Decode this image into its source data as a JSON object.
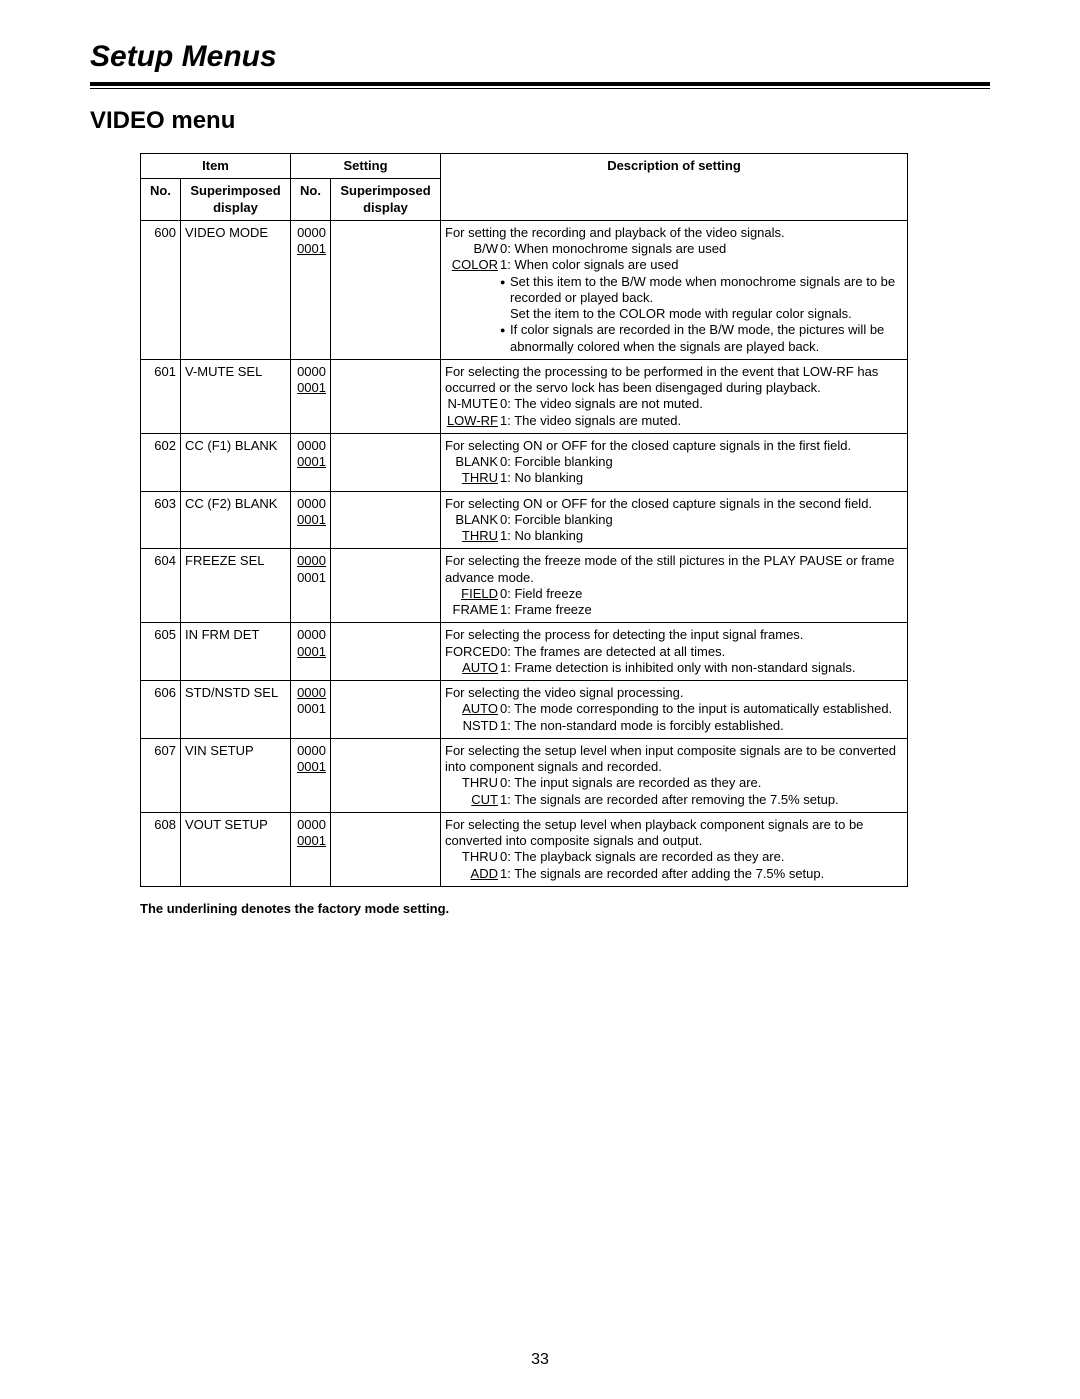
{
  "chapter_title": "Setup Menus",
  "section_title": "VIDEO menu",
  "footnote": "The underlining denotes the factory mode setting.",
  "page_number": "33",
  "headers": {
    "item": "Item",
    "setting": "Setting",
    "no": "No.",
    "superimposed": "Superimposed display",
    "description": "Description of setting"
  },
  "rows": [
    {
      "no": "600",
      "item": "VIDEO MODE",
      "settings": [
        {
          "no": "0000",
          "disp": "B/W",
          "text": "0: When monochrome signals are used",
          "default": false
        },
        {
          "no": "0001",
          "disp": "COLOR",
          "text": "1: When color signals are used",
          "default": true
        }
      ],
      "intro": "For setting the recording and playback of the video signals.",
      "notes": [
        "Set this item to the B/W mode when monochrome signals are to be recorded or played back.",
        "Set the item to the COLOR mode with regular color signals.",
        "If color signals are recorded in the B/W mode, the pictures will be abnormally colored when the signals are played back."
      ],
      "note_bullets": [
        true,
        false,
        true
      ]
    },
    {
      "no": "601",
      "item": "V-MUTE SEL",
      "settings": [
        {
          "no": "0000",
          "disp": "N-MUTE",
          "text": "0: The video signals are not muted.",
          "default": false
        },
        {
          "no": "0001",
          "disp": "LOW-RF",
          "text": "1: The video signals are muted.",
          "default": true
        }
      ],
      "intro": "For selecting the processing to be performed in the event that LOW-RF has occurred or the servo lock has been disengaged during playback.",
      "notes": [],
      "note_bullets": []
    },
    {
      "no": "602",
      "item": "CC (F1) BLANK",
      "settings": [
        {
          "no": "0000",
          "disp": "BLANK",
          "text": "0: Forcible blanking",
          "default": false
        },
        {
          "no": "0001",
          "disp": "THRU",
          "text": "1: No blanking",
          "default": true
        }
      ],
      "intro": "For selecting ON or OFF for the closed capture signals in the first field.",
      "notes": [],
      "note_bullets": []
    },
    {
      "no": "603",
      "item": "CC (F2) BLANK",
      "settings": [
        {
          "no": "0000",
          "disp": "BLANK",
          "text": "0: Forcible blanking",
          "default": false
        },
        {
          "no": "0001",
          "disp": "THRU",
          "text": "1: No blanking",
          "default": true
        }
      ],
      "intro": "For selecting ON or OFF for the closed capture signals in the second field.",
      "notes": [],
      "note_bullets": []
    },
    {
      "no": "604",
      "item": "FREEZE SEL",
      "settings": [
        {
          "no": "0000",
          "disp": "FIELD",
          "text": "0: Field freeze",
          "default": true
        },
        {
          "no": "0001",
          "disp": "FRAME",
          "text": "1: Frame freeze",
          "default": false
        }
      ],
      "intro": "For selecting the freeze mode of the still pictures in the PLAY PAUSE or frame advance mode.",
      "notes": [],
      "note_bullets": []
    },
    {
      "no": "605",
      "item": "IN FRM DET",
      "settings": [
        {
          "no": "0000",
          "disp": "FORCED",
          "text": "0: The frames are detected at all times.",
          "default": false
        },
        {
          "no": "0001",
          "disp": "AUTO",
          "text": "1: Frame detection is inhibited only with non-standard signals.",
          "default": true
        }
      ],
      "intro": "For selecting the process for detecting the input signal frames.",
      "notes": [],
      "note_bullets": []
    },
    {
      "no": "606",
      "item": "STD/NSTD SEL",
      "settings": [
        {
          "no": "0000",
          "disp": "AUTO",
          "text": "0: The mode corresponding to the input is automatically established.",
          "default": true
        },
        {
          "no": "0001",
          "disp": "NSTD",
          "text": "1: The non-standard mode is forcibly established.",
          "default": false
        }
      ],
      "intro": "For selecting the video signal processing.",
      "notes": [],
      "note_bullets": []
    },
    {
      "no": "607",
      "item": "VIN SETUP",
      "settings": [
        {
          "no": "0000",
          "disp": "THRU",
          "text": "0: The input signals are recorded as they are.",
          "default": false
        },
        {
          "no": "0001",
          "disp": "CUT",
          "text": "1: The signals are recorded after removing the 7.5% setup.",
          "default": true
        }
      ],
      "intro": "For selecting the setup level when input composite signals are to be converted into component signals and recorded.",
      "notes": [],
      "note_bullets": []
    },
    {
      "no": "608",
      "item": "VOUT SETUP",
      "settings": [
        {
          "no": "0000",
          "disp": "THRU",
          "text": "0: The playback signals are recorded as they are.",
          "default": false
        },
        {
          "no": "0001",
          "disp": "ADD",
          "text": "1: The signals are recorded after adding the 7.5% setup.",
          "default": true
        }
      ],
      "intro": "For selecting the setup level when playback component signals are to be converted into composite signals and output.",
      "notes": [],
      "note_bullets": []
    }
  ]
}
